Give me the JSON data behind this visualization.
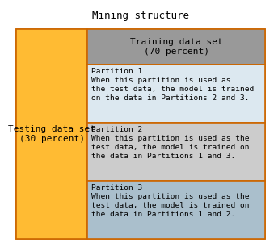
{
  "title": "Mining structure",
  "bg_color": "#ffffff",
  "border_color": "#cc6600",
  "testing_bg_color": "#ffbb33",
  "testing_label": "Testing data set\n(30 percent)",
  "training_header_bg": "#999999",
  "training_header_label": "Training data set\n(70 percent)",
  "partition_colors": [
    "#dce8f0",
    "#cccccc",
    "#aabfcc"
  ],
  "partition_labels": [
    "Partition 1\nWhen this partition is used as\nthe test data, the model is trained\non the data in Partitions 2 and 3.",
    "Partition 2\nWhen this partition is used as the\ntest data, the model is trained on\nthe data in Partitions 1 and 3.",
    "Partition 3\nWhen this partition is used as the\ntest data, the model is trained on\nthe data in Partitions 1 and 2."
  ],
  "title_fontsize": 9,
  "header_fontsize": 8,
  "body_fontsize": 6.8,
  "lw": 1.2
}
